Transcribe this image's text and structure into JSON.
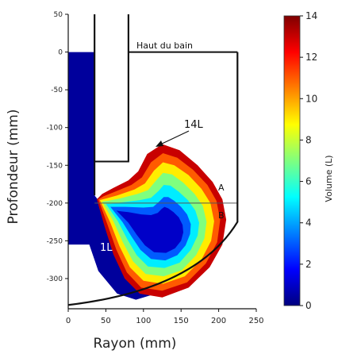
{
  "chart_data": {
    "type": "heatmap",
    "title": "",
    "xlabel": "Rayon (mm)",
    "ylabel": "Profondeur (mm)",
    "xlim": [
      0,
      250
    ],
    "ylim": [
      -340,
      50
    ],
    "x_ticks": [
      0,
      50,
      100,
      150,
      200,
      250
    ],
    "y_ticks": [
      50,
      0,
      -50,
      -100,
      -150,
      -200,
      -250,
      -300
    ],
    "colorbar": {
      "label": "Volume (L)",
      "min": 0,
      "max": 14,
      "ticks": [
        0,
        2,
        4,
        6,
        8,
        10,
        12,
        14
      ],
      "colors": [
        "#00007f",
        "#0000ff",
        "#007fff",
        "#00ffff",
        "#7fff7f",
        "#ffff00",
        "#ff7f00",
        "#ff0000",
        "#7f0000"
      ]
    },
    "annotations": {
      "bath_top": "Haut du bain",
      "outer_contour": "14L",
      "inner_region": "1L",
      "zone_a": "A",
      "zone_b": "B"
    },
    "zone_boundary_depth": -200,
    "bath_surface_depth": 0,
    "rod": {
      "r_min": 35,
      "r_max": 80,
      "bottom_depth": -145
    },
    "vessel_wall_radius": 225,
    "contours": [
      {
        "volume": 14,
        "points": [
          [
            38,
            -195
          ],
          [
            48,
            -230
          ],
          [
            60,
            -268
          ],
          [
            75,
            -300
          ],
          [
            95,
            -320
          ],
          [
            125,
            -325
          ],
          [
            160,
            -312
          ],
          [
            188,
            -285
          ],
          [
            205,
            -255
          ],
          [
            210,
            -222
          ],
          [
            205,
            -195
          ],
          [
            192,
            -172
          ],
          [
            172,
            -150
          ],
          [
            148,
            -130
          ],
          [
            125,
            -122
          ],
          [
            105,
            -135
          ],
          [
            93,
            -158
          ],
          [
            80,
            -170
          ],
          [
            60,
            -180
          ],
          [
            45,
            -188
          ]
        ]
      },
      {
        "volume": 12,
        "points": [
          [
            40,
            -195
          ],
          [
            52,
            -228
          ],
          [
            64,
            -262
          ],
          [
            78,
            -292
          ],
          [
            97,
            -312
          ],
          [
            125,
            -316
          ],
          [
            158,
            -305
          ],
          [
            183,
            -280
          ],
          [
            198,
            -252
          ],
          [
            202,
            -222
          ],
          [
            197,
            -197
          ],
          [
            185,
            -176
          ],
          [
            166,
            -156
          ],
          [
            145,
            -140
          ],
          [
            126,
            -134
          ],
          [
            110,
            -146
          ],
          [
            98,
            -166
          ],
          [
            84,
            -176
          ],
          [
            62,
            -185
          ],
          [
            47,
            -191
          ]
        ]
      },
      {
        "volume": 10,
        "points": [
          [
            42,
            -196
          ],
          [
            56,
            -226
          ],
          [
            68,
            -257
          ],
          [
            82,
            -285
          ],
          [
            100,
            -303
          ],
          [
            126,
            -307
          ],
          [
            155,
            -297
          ],
          [
            177,
            -275
          ],
          [
            190,
            -250
          ],
          [
            194,
            -224
          ],
          [
            189,
            -200
          ],
          [
            177,
            -181
          ],
          [
            160,
            -163
          ],
          [
            141,
            -150
          ],
          [
            126,
            -146
          ],
          [
            114,
            -157
          ],
          [
            102,
            -174
          ],
          [
            88,
            -182
          ],
          [
            65,
            -190
          ],
          [
            50,
            -194
          ]
        ]
      },
      {
        "volume": 8,
        "points": [
          [
            45,
            -198
          ],
          [
            60,
            -224
          ],
          [
            72,
            -251
          ],
          [
            86,
            -277
          ],
          [
            103,
            -294
          ],
          [
            127,
            -297
          ],
          [
            151,
            -289
          ],
          [
            170,
            -269
          ],
          [
            181,
            -247
          ],
          [
            184,
            -225
          ],
          [
            179,
            -204
          ],
          [
            168,
            -188
          ],
          [
            153,
            -173
          ],
          [
            138,
            -162
          ],
          [
            126,
            -160
          ],
          [
            117,
            -170
          ],
          [
            106,
            -183
          ],
          [
            92,
            -188
          ],
          [
            68,
            -194
          ],
          [
            53,
            -197
          ]
        ]
      },
      {
        "volume": 6,
        "points": [
          [
            50,
            -201
          ],
          [
            66,
            -224
          ],
          [
            78,
            -247
          ],
          [
            91,
            -269
          ],
          [
            106,
            -284
          ],
          [
            128,
            -286
          ],
          [
            148,
            -279
          ],
          [
            163,
            -262
          ],
          [
            172,
            -243
          ],
          [
            174,
            -226
          ],
          [
            169,
            -210
          ],
          [
            159,
            -196
          ],
          [
            147,
            -185
          ],
          [
            136,
            -177
          ],
          [
            127,
            -176
          ],
          [
            120,
            -184
          ],
          [
            110,
            -193
          ],
          [
            96,
            -196
          ],
          [
            72,
            -199
          ],
          [
            57,
            -201
          ]
        ]
      },
      {
        "volume": 4,
        "points": [
          [
            56,
            -205
          ],
          [
            72,
            -225
          ],
          [
            84,
            -244
          ],
          [
            96,
            -262
          ],
          [
            110,
            -274
          ],
          [
            129,
            -276
          ],
          [
            145,
            -269
          ],
          [
            156,
            -256
          ],
          [
            162,
            -241
          ],
          [
            163,
            -228
          ],
          [
            158,
            -215
          ],
          [
            150,
            -205
          ],
          [
            141,
            -197
          ],
          [
            133,
            -192
          ],
          [
            127,
            -192
          ],
          [
            121,
            -198
          ],
          [
            113,
            -205
          ],
          [
            100,
            -206
          ],
          [
            76,
            -205
          ],
          [
            62,
            -205
          ]
        ]
      },
      {
        "volume": 2,
        "points": [
          [
            64,
            -210
          ],
          [
            80,
            -226
          ],
          [
            91,
            -242
          ],
          [
            102,
            -256
          ],
          [
            114,
            -265
          ],
          [
            130,
            -266
          ],
          [
            142,
            -260
          ],
          [
            150,
            -250
          ],
          [
            153,
            -239
          ],
          [
            152,
            -229
          ],
          [
            147,
            -219
          ],
          [
            140,
            -212
          ],
          [
            133,
            -207
          ],
          [
            128,
            -205
          ],
          [
            124,
            -208
          ],
          [
            119,
            -213
          ],
          [
            110,
            -216
          ],
          [
            97,
            -215
          ],
          [
            80,
            -212
          ],
          [
            70,
            -211
          ]
        ]
      }
    ]
  }
}
